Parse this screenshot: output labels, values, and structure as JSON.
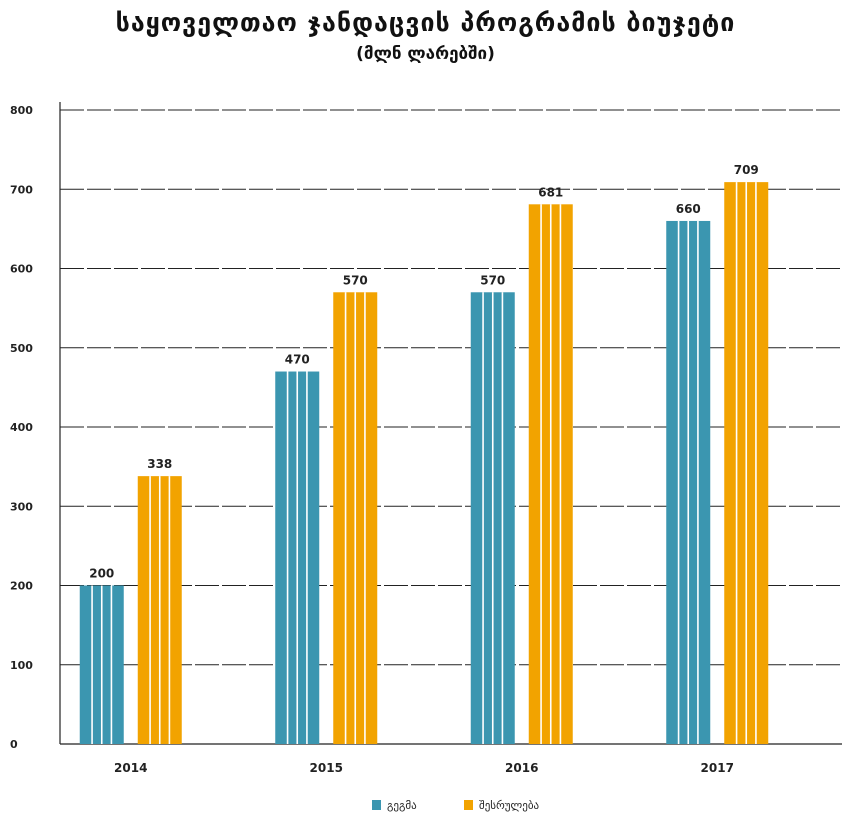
{
  "chart_data": {
    "type": "bar",
    "title": "საყოველთაო ჯანდაცვის პროგრამის ბიუჯეტი",
    "subtitle": "(მლნ ლარებში)",
    "categories": [
      "2014",
      "2015",
      "2016",
      "2017"
    ],
    "series": [
      {
        "name": "გეგმა",
        "values": [
          200,
          470,
          570,
          660
        ],
        "color": "#3b96b0"
      },
      {
        "name": "შესრულება",
        "values": [
          338,
          570,
          681,
          709
        ],
        "color": "#f2a300"
      }
    ],
    "ylim": [
      0,
      800
    ],
    "yticks": [
      0,
      100,
      200,
      300,
      400,
      500,
      600,
      700,
      800
    ],
    "grid": true,
    "legend": "bottom-center"
  }
}
